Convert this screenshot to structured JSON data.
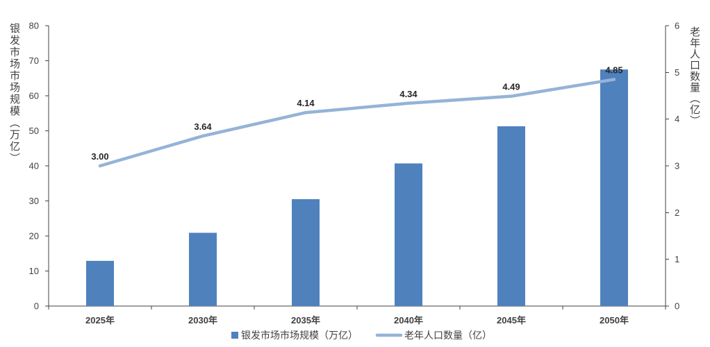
{
  "chart_data": {
    "type": "bar",
    "categories": [
      "2025年",
      "2030年",
      "2035年",
      "2040年",
      "2045年",
      "2050年"
    ],
    "series": [
      {
        "name": "银发市场市场规模（万亿）",
        "type": "bar",
        "axis": "left",
        "color": "#4f81bd",
        "values": [
          12.9,
          20.9,
          30.5,
          40.7,
          51.3,
          67.5
        ]
      },
      {
        "name": "老年人口数量（亿）",
        "type": "line",
        "axis": "right",
        "color": "#95b3d7",
        "values": [
          3.0,
          3.64,
          4.14,
          4.34,
          4.49,
          4.85
        ],
        "data_labels": [
          "3.00",
          "3.64",
          "4.14",
          "4.34",
          "4.49",
          "4.85"
        ]
      }
    ],
    "ylabel": "银发市场市场规模（万亿）",
    "y2label": "老年人口数量（亿）",
    "ylim": [
      0,
      80
    ],
    "y2lim": [
      0,
      6
    ],
    "yticks": [
      0,
      10,
      20,
      30,
      40,
      50,
      60,
      70,
      80
    ],
    "y2ticks": [
      0,
      1,
      2,
      3,
      4,
      5,
      6
    ],
    "grid": false,
    "legend": "bottom"
  },
  "colors": {
    "axis": "#404040",
    "text": "#404040",
    "data_label": "#262626"
  }
}
